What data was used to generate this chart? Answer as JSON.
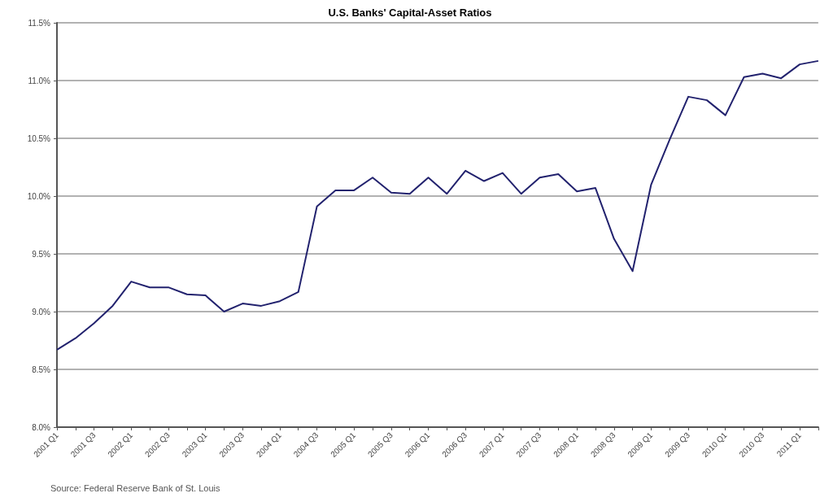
{
  "chart_data": {
    "type": "line",
    "title": "U.S. Banks' Capital-Asset Ratios",
    "categories": [
      "2001 Q1",
      null,
      "2001 Q3",
      null,
      "2002 Q1",
      null,
      "2002 Q3",
      null,
      "2003 Q1",
      null,
      "2003 Q3",
      null,
      "2004 Q1",
      null,
      "2004 Q3",
      null,
      "2005 Q1",
      null,
      "2005 Q3",
      null,
      "2006 Q1",
      null,
      "2006 Q3",
      null,
      "2007 Q1",
      null,
      "2007 Q3",
      null,
      "2008 Q1",
      null,
      "2008 Q3",
      null,
      "2009 Q1",
      null,
      "2009 Q3",
      null,
      "2010 Q1",
      null,
      "2010 Q3",
      null,
      "2011 Q1",
      null
    ],
    "series": [
      {
        "color": "#22226e",
        "values": [
          8.67,
          8.77,
          8.9,
          9.05,
          9.26,
          9.21,
          9.21,
          9.15,
          9.14,
          9.0,
          9.07,
          9.05,
          9.09,
          9.17,
          9.91,
          10.05,
          10.05,
          10.16,
          10.03,
          10.02,
          10.16,
          10.02,
          10.22,
          10.13,
          10.2,
          10.02,
          10.16,
          10.19,
          10.04,
          10.07,
          9.63,
          9.35,
          10.1,
          10.49,
          10.86,
          10.83,
          10.7,
          11.03,
          11.06,
          11.02,
          11.14,
          11.17
        ]
      }
    ],
    "ylim": [
      8.0,
      11.5
    ],
    "yticks": [
      {
        "value": 8.0,
        "label": "8.0%"
      },
      {
        "value": 8.5,
        "label": "8.5%"
      },
      {
        "value": 9.0,
        "label": "9.0%"
      },
      {
        "value": 9.5,
        "label": "9.5%"
      },
      {
        "value": 10.0,
        "label": "10.0%"
      },
      {
        "value": 10.5,
        "label": "10.5%"
      },
      {
        "value": 11.0,
        "label": "11.0%"
      },
      {
        "value": 11.5,
        "label": "11.5%"
      }
    ],
    "grid": "y",
    "marker": "none",
    "line_style": "solid",
    "annotations": [
      "Source: Federal Reserve Bank of St. Louis"
    ]
  }
}
